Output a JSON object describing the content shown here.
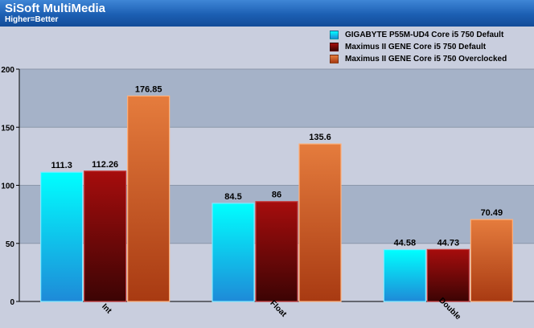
{
  "header": {
    "title": "SiSoft MultiMedia",
    "subtitle": "Higher=Better"
  },
  "legend": [
    {
      "label": "GIGABYTE P55M-UD4 Core i5 750 Default",
      "color": "#22d4f0"
    },
    {
      "label": "Maximus II GENE Core i5 750 Default",
      "color": "#8c0c0c"
    },
    {
      "label": "Maximus II GENE Core i5 750 Overclocked",
      "color": "#dd6a2e"
    }
  ],
  "chart_data": {
    "type": "bar",
    "title": "SiSoft MultiMedia",
    "subtitle": "Higher=Better",
    "categories": [
      "Int",
      "Float",
      "Double"
    ],
    "series": [
      {
        "name": "GIGABYTE P55M-UD4 Core i5 750 Default",
        "values": [
          111.3,
          84.5,
          44.58
        ],
        "labels": [
          "111.3",
          "84.5",
          "44.58"
        ],
        "color": "#22d4f0"
      },
      {
        "name": "Maximus II GENE Core i5 750 Default",
        "values": [
          112.26,
          86,
          44.73
        ],
        "labels": [
          "112.26",
          "86",
          "44.73"
        ],
        "color": "#8c0c0c"
      },
      {
        "name": "Maximus II GENE Core i5 750 Overclocked",
        "values": [
          176.85,
          135.6,
          70.49
        ],
        "labels": [
          "176.85",
          "135.6",
          "70.49"
        ],
        "color": "#dd6a2e"
      }
    ],
    "ylim": [
      0,
      200
    ],
    "yticks": [
      0,
      50,
      100,
      150,
      200
    ],
    "grid": true,
    "legend_position": "top-right",
    "xlabel": "",
    "ylabel": ""
  }
}
